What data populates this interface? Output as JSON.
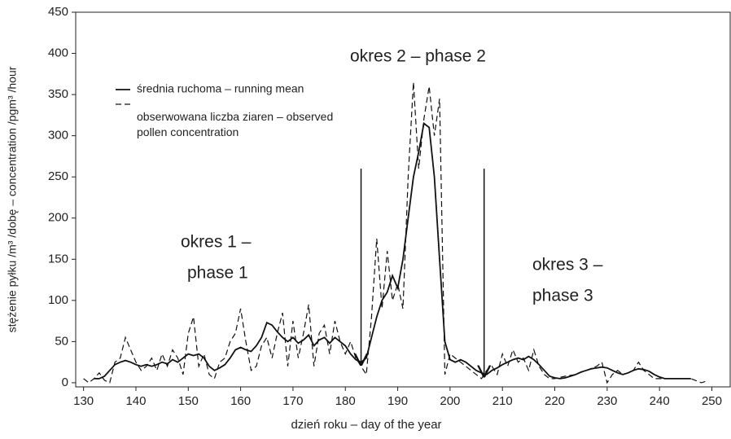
{
  "chart_data": {
    "type": "line",
    "xlabel": "dzień roku – day of the year",
    "ylabel": "stężenie pyłku /m³ /dobę – concentration /pgm³ /hour",
    "xlim": [
      128.5,
      253.5
    ],
    "ylim": [
      -5,
      450
    ],
    "xticks": [
      130,
      140,
      150,
      160,
      170,
      180,
      190,
      200,
      210,
      220,
      230,
      240,
      250
    ],
    "yticks": [
      0,
      50,
      100,
      150,
      200,
      250,
      300,
      350,
      400,
      450
    ],
    "grid": false,
    "legend": "upper left",
    "annotations": [
      {
        "text": "okres 2 – phase 2"
      },
      {
        "text": "okres 1 –"
      },
      {
        "text": "phase 1"
      },
      {
        "text": "okres 3 –"
      },
      {
        "text": "phase 3"
      }
    ],
    "arrows": [
      {
        "x": 183,
        "from": 260,
        "to": 22
      },
      {
        "x": 206.5,
        "from": 260,
        "to": 8
      }
    ],
    "series": [
      {
        "name": "średnia ruchoma – running mean",
        "color": "#111",
        "dash": "solid",
        "x": [
          132,
          133,
          134,
          135,
          136,
          137,
          138,
          139,
          140,
          141,
          142,
          143,
          144,
          145,
          146,
          147,
          148,
          149,
          150,
          151,
          152,
          153,
          154,
          155,
          156,
          157,
          158,
          159,
          160,
          161,
          162,
          163,
          164,
          165,
          166,
          167,
          168,
          169,
          170,
          171,
          172,
          173,
          174,
          175,
          176,
          177,
          178,
          179,
          180,
          181,
          182,
          183,
          184,
          185,
          186,
          187,
          188,
          189,
          190,
          191,
          192,
          193,
          194,
          195,
          196,
          197,
          198,
          199,
          200,
          201,
          202,
          203,
          204,
          205,
          206,
          207,
          208,
          209,
          210,
          211,
          212,
          213,
          214,
          215,
          216,
          217,
          218,
          219,
          220,
          221,
          222,
          223,
          224,
          225,
          226,
          227,
          228,
          229,
          230,
          231,
          232,
          233,
          234,
          235,
          236,
          237,
          238,
          239,
          240,
          241,
          242,
          243,
          244,
          245,
          246
        ],
        "values": [
          5,
          5,
          8,
          15,
          22,
          25,
          27,
          25,
          22,
          20,
          22,
          20,
          22,
          25,
          23,
          28,
          25,
          30,
          35,
          33,
          35,
          30,
          20,
          15,
          18,
          22,
          30,
          40,
          43,
          40,
          38,
          45,
          55,
          73,
          70,
          62,
          55,
          50,
          55,
          48,
          52,
          58,
          45,
          52,
          55,
          48,
          55,
          50,
          45,
          35,
          28,
          25,
          30,
          55,
          80,
          100,
          110,
          130,
          115,
          150,
          200,
          250,
          280,
          315,
          310,
          250,
          150,
          50,
          28,
          25,
          28,
          25,
          20,
          15,
          12,
          10,
          15,
          18,
          22,
          25,
          28,
          30,
          28,
          32,
          28,
          22,
          15,
          8,
          6,
          5,
          6,
          8,
          10,
          13,
          15,
          17,
          18,
          19,
          18,
          15,
          12,
          10,
          12,
          15,
          17,
          16,
          14,
          10,
          7,
          5,
          5,
          5,
          5,
          5,
          5
        ]
      },
      {
        "name": "obserwowana liczba ziaren – observed pollen concentration",
        "color": "#111",
        "dash": "dashed",
        "x": [
          130,
          131,
          132,
          133,
          134,
          135,
          136,
          137,
          138,
          139,
          140,
          141,
          142,
          143,
          144,
          145,
          146,
          147,
          148,
          149,
          150,
          151,
          152,
          153,
          154,
          155,
          156,
          157,
          158,
          159,
          160,
          161,
          162,
          163,
          164,
          165,
          166,
          167,
          168,
          169,
          170,
          171,
          172,
          173,
          174,
          175,
          176,
          177,
          178,
          179,
          180,
          181,
          182,
          183,
          184,
          185,
          186,
          187,
          188,
          189,
          190,
          191,
          192,
          193,
          194,
          195,
          196,
          197,
          198,
          199,
          200,
          201,
          202,
          203,
          204,
          205,
          206,
          207,
          208,
          209,
          210,
          211,
          212,
          213,
          214,
          215,
          216,
          217,
          218,
          219,
          220,
          222,
          224,
          226,
          228,
          229,
          230,
          231,
          232,
          233,
          234,
          235,
          236,
          237,
          238,
          239,
          240,
          242,
          244,
          246,
          248,
          249
        ],
        "values": [
          5,
          0,
          5,
          12,
          3,
          0,
          25,
          30,
          55,
          40,
          25,
          15,
          20,
          30,
          15,
          35,
          20,
          40,
          30,
          10,
          60,
          80,
          20,
          35,
          10,
          5,
          25,
          30,
          50,
          60,
          90,
          50,
          15,
          20,
          45,
          55,
          30,
          60,
          85,
          20,
          75,
          30,
          60,
          95,
          20,
          60,
          70,
          35,
          75,
          50,
          35,
          50,
          30,
          20,
          10,
          80,
          175,
          90,
          160,
          100,
          120,
          90,
          250,
          365,
          260,
          320,
          360,
          300,
          345,
          10,
          35,
          30,
          25,
          20,
          15,
          10,
          5,
          15,
          20,
          10,
          35,
          20,
          40,
          25,
          30,
          15,
          40,
          20,
          10,
          5,
          5,
          8,
          10,
          15,
          20,
          25,
          0,
          10,
          15,
          10,
          12,
          15,
          25,
          15,
          10,
          5,
          5,
          5,
          5,
          5,
          0,
          2
        ]
      }
    ]
  }
}
